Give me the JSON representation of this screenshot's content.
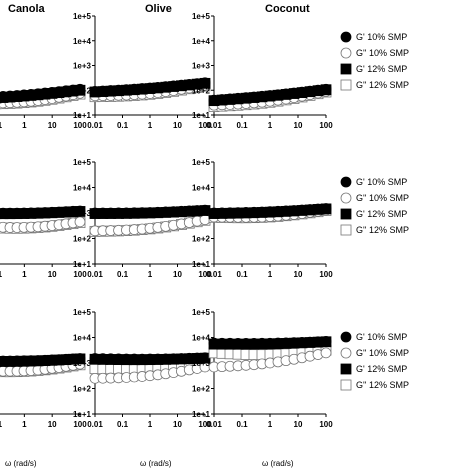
{
  "columns": [
    "Canola",
    "Olive",
    "Coconut"
  ],
  "xlabel": "ω (rad/s)",
  "legend": [
    {
      "label": "G' 10% SMP",
      "marker": "circle-filled"
    },
    {
      "label": "G'' 10% SMP",
      "marker": "circle-open"
    },
    {
      "label": "G' 12% SMP",
      "marker": "square-filled"
    },
    {
      "label": "G'' 12% SMP",
      "marker": "square-open"
    }
  ],
  "chart_data": [
    {
      "type": "scatter",
      "row": 0,
      "col": 0,
      "title": "Canola",
      "xscale": "log",
      "yscale": "log",
      "xticks": [
        "0.1",
        "1",
        "10",
        "100"
      ],
      "yticks": [],
      "xlim": [
        0.03,
        100
      ],
      "ylim": [
        10,
        100000
      ],
      "series": [
        {
          "name": "G' 10% SMP",
          "marker": "circle-filled",
          "x": [
            0.03,
            100
          ],
          "y": [
            50,
            110
          ]
        },
        {
          "name": "G'' 10% SMP",
          "marker": "circle-open",
          "x": [
            0.03,
            100
          ],
          "y": [
            30,
            75
          ]
        },
        {
          "name": "G' 12% SMP",
          "marker": "square-filled",
          "x": [
            0.03,
            100
          ],
          "y": [
            45,
            100
          ]
        },
        {
          "name": "G'' 12% SMP",
          "marker": "square-open",
          "x": [
            0.03,
            100
          ],
          "y": [
            28,
            70
          ]
        }
      ]
    },
    {
      "type": "scatter",
      "row": 0,
      "col": 1,
      "title": "Olive",
      "xscale": "log",
      "yscale": "log",
      "xticks": [
        "0.01",
        "0.1",
        "1",
        "10",
        "100"
      ],
      "yticks": [
        "1e+1",
        "1e+2",
        "1e+3",
        "1e+4",
        "1e+5"
      ],
      "xlim": [
        0.01,
        100
      ],
      "ylim": [
        10,
        100000
      ],
      "series": [
        {
          "name": "G' 10% SMP",
          "marker": "circle-filled",
          "x": [
            0.01,
            100
          ],
          "y": [
            90,
            200
          ]
        },
        {
          "name": "G'' 10% SMP",
          "marker": "circle-open",
          "x": [
            0.01,
            100
          ],
          "y": [
            60,
            160
          ]
        },
        {
          "name": "G' 12% SMP",
          "marker": "square-filled",
          "x": [
            0.01,
            100
          ],
          "y": [
            85,
            190
          ]
        },
        {
          "name": "G'' 12% SMP",
          "marker": "square-open",
          "x": [
            0.01,
            100
          ],
          "y": [
            55,
            150
          ]
        }
      ]
    },
    {
      "type": "scatter",
      "row": 0,
      "col": 2,
      "title": "Coconut",
      "xscale": "log",
      "yscale": "log",
      "xticks": [
        "0.01",
        "0.1",
        "1",
        "10",
        "100"
      ],
      "yticks": [
        "1e+1",
        "1e+2",
        "1e+3",
        "1e+4",
        "1e+5"
      ],
      "xlim": [
        0.01,
        100
      ],
      "ylim": [
        10,
        100000
      ],
      "series": [
        {
          "name": "G' 10% SMP",
          "marker": "circle-filled",
          "x": [
            0.01,
            100
          ],
          "y": [
            40,
            110
          ]
        },
        {
          "name": "G'' 10% SMP",
          "marker": "circle-open",
          "x": [
            0.01,
            100
          ],
          "y": [
            25,
            90
          ]
        },
        {
          "name": "G' 12% SMP",
          "marker": "square-filled",
          "x": [
            0.01,
            100
          ],
          "y": [
            38,
            105
          ]
        },
        {
          "name": "G'' 12% SMP",
          "marker": "square-open",
          "x": [
            0.01,
            100
          ],
          "y": [
            22,
            85
          ]
        }
      ]
    },
    {
      "type": "scatter",
      "row": 1,
      "col": 0,
      "xscale": "log",
      "yscale": "log",
      "xticks": [
        "0.1",
        "1",
        "10",
        "100"
      ],
      "yticks": [],
      "xlim": [
        0.03,
        100
      ],
      "ylim": [
        10,
        100000
      ],
      "series": [
        {
          "name": "G' 10% SMP",
          "marker": "circle-filled",
          "x": [
            0.03,
            100
          ],
          "y": [
            1000,
            1200
          ]
        },
        {
          "name": "G'' 10% SMP",
          "marker": "circle-open",
          "x": [
            0.03,
            100
          ],
          "y": [
            300,
            450
          ]
        },
        {
          "name": "G' 12% SMP",
          "marker": "square-filled",
          "x": [
            0.03,
            100
          ],
          "y": [
            950,
            1150
          ]
        },
        {
          "name": "G'' 12% SMP",
          "marker": "square-open",
          "x": [
            0.03,
            100
          ],
          "y": [
            280,
            420
          ]
        }
      ]
    },
    {
      "type": "scatter",
      "row": 1,
      "col": 1,
      "xscale": "log",
      "yscale": "log",
      "xticks": [
        "0.01",
        "0.1",
        "1",
        "10",
        "100"
      ],
      "yticks": [
        "1e+1",
        "1e+2",
        "1e+3",
        "1e+4",
        "1e+5"
      ],
      "xlim": [
        0.01,
        100
      ],
      "ylim": [
        10,
        100000
      ],
      "series": [
        {
          "name": "G' 10% SMP",
          "marker": "circle-filled",
          "x": [
            0.01,
            100
          ],
          "y": [
            1000,
            1300
          ]
        },
        {
          "name": "G'' 10% SMP",
          "marker": "circle-open",
          "x": [
            0.01,
            100
          ],
          "y": [
            200,
            550
          ]
        },
        {
          "name": "G' 12% SMP",
          "marker": "square-filled",
          "x": [
            0.01,
            100
          ],
          "y": [
            950,
            1250
          ]
        },
        {
          "name": "G'' 12% SMP",
          "marker": "square-open",
          "x": [
            0.01,
            100
          ],
          "y": [
            190,
            520
          ]
        }
      ]
    },
    {
      "type": "scatter",
      "row": 1,
      "col": 2,
      "xscale": "log",
      "yscale": "log",
      "xticks": [
        "0.01",
        "0.1",
        "1",
        "10",
        "100"
      ],
      "yticks": [
        "1e+1",
        "1e+2",
        "1e+3",
        "1e+4",
        "1e+5"
      ],
      "xlim": [
        0.01,
        100
      ],
      "ylim": [
        10,
        100000
      ],
      "series": [
        {
          "name": "G' 10% SMP",
          "marker": "circle-filled",
          "x": [
            0.01,
            100
          ],
          "y": [
            1000,
            1500
          ]
        },
        {
          "name": "G'' 10% SMP",
          "marker": "circle-open",
          "x": [
            0.01,
            100
          ],
          "y": [
            700,
            1300
          ]
        },
        {
          "name": "G' 12% SMP",
          "marker": "square-filled",
          "x": [
            0.01,
            100
          ],
          "y": [
            950,
            1450
          ]
        },
        {
          "name": "G'' 12% SMP",
          "marker": "square-open",
          "x": [
            0.01,
            100
          ],
          "y": [
            680,
            1250
          ]
        }
      ]
    },
    {
      "type": "scatter",
      "row": 2,
      "col": 0,
      "xscale": "log",
      "yscale": "log",
      "xticks": [
        "0.1",
        "1",
        "10",
        "100"
      ],
      "yticks": [],
      "xlim": [
        0.03,
        100
      ],
      "ylim": [
        10,
        100000
      ],
      "series": [
        {
          "name": "G' 10% SMP",
          "marker": "circle-filled",
          "x": [
            0.03,
            100
          ],
          "y": [
            1200,
            1500
          ]
        },
        {
          "name": "G'' 10% SMP",
          "marker": "circle-open",
          "x": [
            0.03,
            100
          ],
          "y": [
            500,
            900
          ]
        },
        {
          "name": "G' 12% SMP",
          "marker": "square-filled",
          "x": [
            0.03,
            100
          ],
          "y": [
            1150,
            1450
          ]
        },
        {
          "name": "G'' 12% SMP",
          "marker": "square-open",
          "x": [
            0.03,
            100
          ],
          "y": [
            480,
            850
          ]
        }
      ]
    },
    {
      "type": "scatter",
      "row": 2,
      "col": 1,
      "xscale": "log",
      "yscale": "log",
      "xticks": [
        "0.01",
        "0.1",
        "1",
        "10",
        "100"
      ],
      "yticks": [
        "1e+1",
        "1e+2",
        "1e+3",
        "1e+4",
        "1e+5"
      ],
      "xlim": [
        0.01,
        100
      ],
      "ylim": [
        10,
        100000
      ],
      "series": [
        {
          "name": "G' 10% SMP",
          "marker": "circle-filled",
          "x": [
            0.01,
            100
          ],
          "y": [
            1500,
            1600
          ]
        },
        {
          "name": "G'' 10% SMP",
          "marker": "circle-open",
          "x": [
            0.01,
            100
          ],
          "y": [
            250,
            700
          ]
        },
        {
          "name": "G' 12% SMP",
          "marker": "square-filled",
          "x": [
            0.01,
            100
          ],
          "y": [
            1400,
            1550
          ]
        },
        {
          "name": "G'' 12% SMP",
          "marker": "square-open",
          "x": [
            0.01,
            100
          ],
          "y": [
            600,
            1300
          ]
        }
      ]
    },
    {
      "type": "scatter",
      "row": 2,
      "col": 2,
      "xscale": "log",
      "yscale": "log",
      "xticks": [
        "0.01",
        "0.1",
        "1",
        "10",
        "100"
      ],
      "yticks": [
        "1e+1",
        "1e+2",
        "1e+3",
        "1e+4",
        "1e+5"
      ],
      "xlim": [
        0.01,
        100
      ],
      "ylim": [
        10,
        100000
      ],
      "series": [
        {
          "name": "G' 10% SMP",
          "marker": "circle-filled",
          "x": [
            0.01,
            100
          ],
          "y": [
            6000,
            7000
          ]
        },
        {
          "name": "G'' 10% SMP",
          "marker": "circle-open",
          "x": [
            0.01,
            100
          ],
          "y": [
            700,
            2500
          ]
        },
        {
          "name": "G' 12% SMP",
          "marker": "square-filled",
          "x": [
            0.01,
            100
          ],
          "y": [
            5500,
            6800
          ]
        },
        {
          "name": "G'' 12% SMP",
          "marker": "square-open",
          "x": [
            0.01,
            100
          ],
          "y": [
            2500,
            3200
          ]
        }
      ]
    }
  ]
}
